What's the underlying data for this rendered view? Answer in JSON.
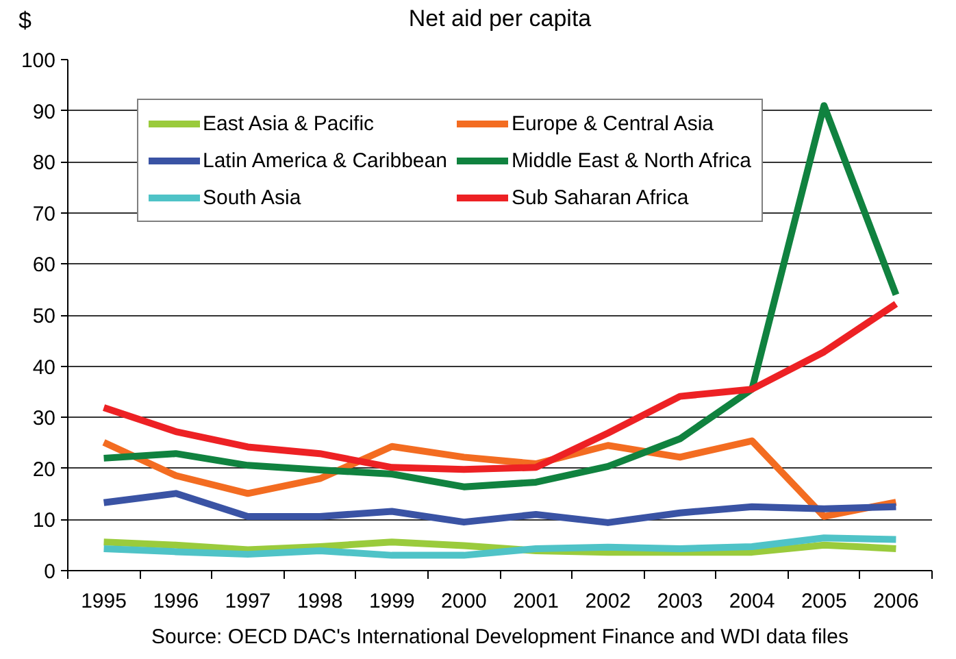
{
  "chart_data": {
    "type": "line",
    "title": "Net aid per capita",
    "ylabel": "$",
    "categories": [
      "1995",
      "1996",
      "1997",
      "1998",
      "1999",
      "2000",
      "2001",
      "2002",
      "2003",
      "2004",
      "2005",
      "2006"
    ],
    "series": [
      {
        "name": "East Asia & Pacific",
        "color": "#9acb3c",
        "values": [
          5.6,
          5.0,
          4.1,
          4.7,
          5.6,
          4.9,
          3.9,
          3.6,
          3.6,
          3.6,
          5.0,
          4.3
        ]
      },
      {
        "name": "Europe & Central Asia",
        "color": "#f36c21",
        "values": [
          25.1,
          18.6,
          15.1,
          18.0,
          24.3,
          22.2,
          20.9,
          24.5,
          22.2,
          25.4,
          10.6,
          13.4
        ]
      },
      {
        "name": "Latin America & Caribbean",
        "color": "#3a53a4",
        "values": [
          13.3,
          15.1,
          10.6,
          10.6,
          11.6,
          9.5,
          11.0,
          9.4,
          11.3,
          12.5,
          12.1,
          12.5
        ]
      },
      {
        "name": "Middle East & North Africa",
        "color": "#10823f",
        "values": [
          22.0,
          22.9,
          20.6,
          19.7,
          18.9,
          16.4,
          17.3,
          20.4,
          25.8,
          35.5,
          91.0,
          54.0
        ]
      },
      {
        "name": "South Asia",
        "color": "#4fc3c7",
        "values": [
          4.3,
          3.7,
          3.2,
          3.9,
          3.0,
          3.0,
          4.3,
          4.6,
          4.3,
          4.7,
          6.4,
          6.1
        ]
      },
      {
        "name": "Sub Saharan Africa",
        "color": "#ed2124",
        "values": [
          31.9,
          27.2,
          24.2,
          22.9,
          20.2,
          19.8,
          20.2,
          26.9,
          34.1,
          35.5,
          42.8,
          52.2
        ]
      }
    ],
    "ylim": [
      0,
      100
    ],
    "yticks": [
      0,
      10,
      20,
      30,
      40,
      50,
      60,
      70,
      80,
      90,
      100
    ],
    "grid": "y",
    "legend": "top left",
    "marker": "none",
    "line_style": "solid",
    "annotations": [
      "Source: OECD DAC's International Development Finance and WDI data files"
    ]
  }
}
